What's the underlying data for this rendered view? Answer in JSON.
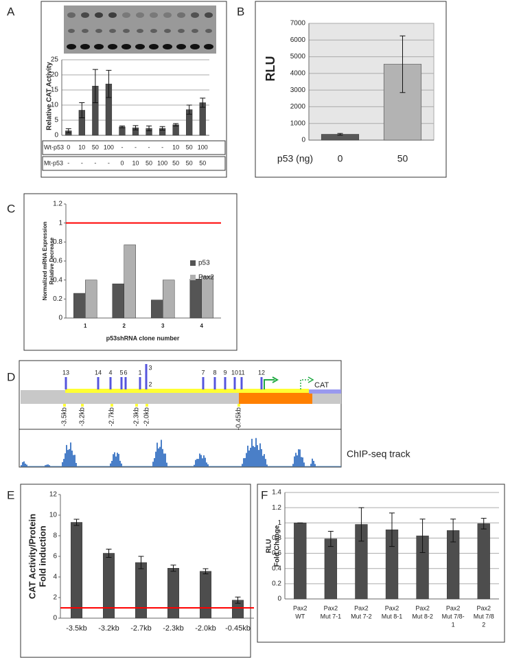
{
  "chart_data": [
    {
      "type": "bar",
      "panel": "A",
      "ylabel": [
        "Relative CAT Activity"
      ],
      "color": "#4d4d4d",
      "grid": true,
      "values": [
        1.5,
        8.3,
        16.3,
        17,
        2.8,
        2.5,
        2.3,
        2.3,
        3.5,
        8.5,
        10.8
      ],
      "errors": [
        0.7,
        2.5,
        5.5,
        4.5,
        0.3,
        0.7,
        0.8,
        0.6,
        0.4,
        1.5,
        1.5
      ],
      "ylim": [
        0,
        25
      ],
      "yticks": [
        0,
        5,
        10,
        15,
        20,
        25
      ],
      "table": [
        {
          "label": "Wt-p53",
          "cells": [
            "0",
            "10",
            "50",
            "100",
            "-",
            "-",
            "-",
            "-",
            "10",
            "50",
            "100"
          ]
        },
        {
          "label": "Mt-p53",
          "cells": [
            "-",
            "-",
            "-",
            "-",
            "0",
            "10",
            "50",
            "100",
            "50",
            "50",
            "50"
          ]
        }
      ]
    },
    {
      "type": "bar",
      "panel": "B",
      "ylabel": [
        "RLU"
      ],
      "xlabel": "p53 (ng)",
      "colors": [
        "#595959",
        "#b3b3b3"
      ],
      "grid": true,
      "background": "#e6e6e6",
      "categories": [
        "0",
        "50"
      ],
      "values": [
        350,
        4550
      ],
      "errors": [
        50,
        1700
      ],
      "ylim": [
        0,
        7000
      ],
      "yticks": [
        0,
        1000,
        2000,
        3000,
        4000,
        5000,
        6000,
        7000
      ]
    },
    {
      "type": "grouped-bar",
      "panel": "C",
      "ylabel": [
        "Normalized mRNA Expression",
        "Relative Decrease"
      ],
      "xlabel": "p53shRNA clone number",
      "grid": false,
      "categories": [
        "1",
        "2",
        "3",
        "4"
      ],
      "series": [
        {
          "name": "p53",
          "color": "#555555",
          "values": [
            0.26,
            0.36,
            0.19,
            0.41
          ]
        },
        {
          "name": "Pax2",
          "color": "#b0b0b0",
          "values": [
            0.4,
            0.77,
            0.4,
            0.44
          ]
        }
      ],
      "reference_line": {
        "value": 1,
        "color": "#ff0000"
      },
      "ylim": [
        0,
        1.2
      ],
      "yticks": [
        0,
        0.2,
        0.4,
        0.6,
        0.8,
        1,
        1.2
      ]
    },
    {
      "type": "bar",
      "panel": "E",
      "ylabel": [
        "CAT Activity/Protein",
        "Fold induction"
      ],
      "color": "#4d4d4d",
      "grid": false,
      "categories": [
        "-3.5kb",
        "-3.2kb",
        "-2.7kb",
        "-2.3kb",
        "-2.0kb",
        "-0.45kb"
      ],
      "values": [
        9.3,
        6.3,
        5.4,
        4.85,
        4.55,
        1.75
      ],
      "errors": [
        0.3,
        0.4,
        0.6,
        0.3,
        0.25,
        0.3
      ],
      "reference_line": {
        "value": 1,
        "color": "#ff0000"
      },
      "ylim": [
        0,
        12
      ],
      "yticks": [
        0,
        2,
        4,
        6,
        8,
        10,
        12
      ]
    },
    {
      "type": "bar",
      "panel": "F",
      "ylabel": [
        "RLU",
        "Fold Change"
      ],
      "color": "#4d4d4d",
      "grid": true,
      "categories": [
        [
          "Pax2",
          "WT"
        ],
        [
          "Pax2",
          "Mut 7-1"
        ],
        [
          "Pax2",
          "Mut 7-2"
        ],
        [
          "Pax2",
          "Mut 8-1"
        ],
        [
          "Pax2",
          "Mut 8-2"
        ],
        [
          "Pax2",
          "Mut 7/8-",
          "1"
        ],
        [
          "Pax2",
          "Mut 7/8",
          "2"
        ]
      ],
      "values": [
        1,
        0.79,
        0.98,
        0.91,
        0.83,
        0.9,
        0.99
      ],
      "errors": [
        0,
        0.1,
        0.22,
        0.22,
        0.22,
        0.15,
        0.07
      ],
      "ylim": [
        0,
        1.4
      ],
      "yticks": [
        0,
        0.2,
        0.4,
        0.6,
        0.8,
        1,
        1.2,
        1.4
      ]
    }
  ],
  "diagram": {
    "panel": "D",
    "gene": "CAT",
    "track_label": "ChIP-seq track",
    "sites": [
      {
        "label": "13",
        "color": "#e02020"
      },
      {
        "label": "14",
        "color": "#e02020"
      },
      {
        "label": "4",
        "color": "#000000"
      },
      {
        "label": "5",
        "color": "#000000"
      },
      {
        "label": "6",
        "color": "#000000"
      },
      {
        "label": "1",
        "color": "#000000"
      },
      {
        "label": "3",
        "color": "#000000"
      },
      {
        "label": "2",
        "color": "#000000"
      },
      {
        "label": "7",
        "color": "#e02020"
      },
      {
        "label": "8",
        "color": "#e02020"
      },
      {
        "label": "9",
        "color": "#000000"
      },
      {
        "label": "10",
        "color": "#000000"
      },
      {
        "label": "11",
        "color": "#e02020"
      },
      {
        "label": "12",
        "color": "#e02020"
      }
    ],
    "positions": [
      "-3.5kb",
      "-3.2kb",
      "-2.7kb",
      "-2.3kb",
      "-2.0kb",
      "-0.45kb"
    ]
  }
}
